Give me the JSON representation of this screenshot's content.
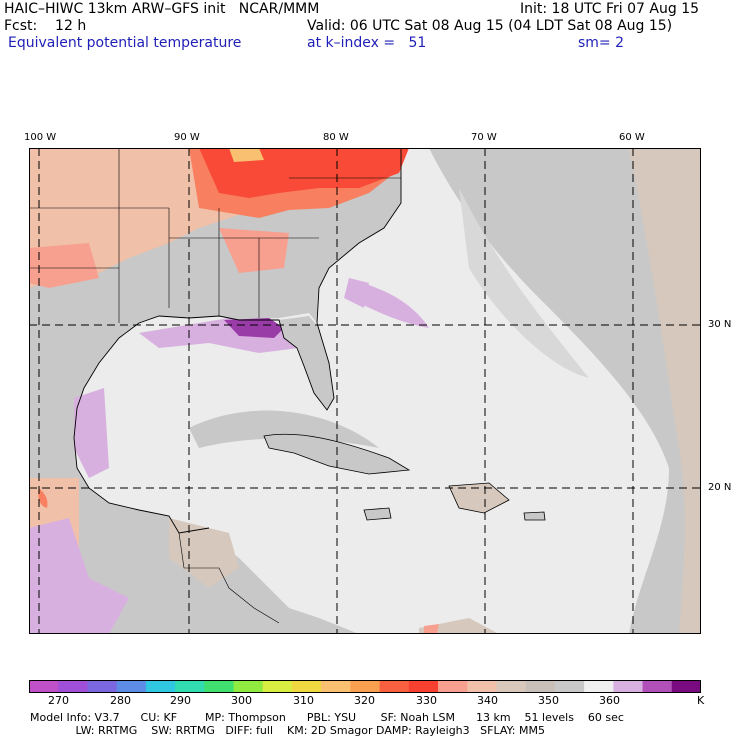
{
  "header": {
    "title": "HAIC–HIWC 13km ARW–GFS init   NCAR/MMM",
    "init": "Init: 18 UTC Fri 07 Aug 15",
    "fcst": "Fcst:    12 h",
    "valid": "Valid: 06 UTC Sat 08 Aug 15 (04 LDT Sat 08 Aug 15)",
    "field": "Equivalent potential temperature",
    "level": "at k–index =   51",
    "smooth": "sm= 2"
  },
  "map": {
    "lon_labels": [
      "100 W",
      "90 W",
      "80 W",
      "70 W",
      "60 W"
    ],
    "lat_labels": [
      "30 N",
      "20 N"
    ]
  },
  "colorbar": {
    "colors": [
      "#c050c8",
      "#a050d8",
      "#7b68e0",
      "#5c8ce6",
      "#30c8e0",
      "#30dcb0",
      "#40e070",
      "#90ea40",
      "#d8ee40",
      "#f0d840",
      "#f8c070",
      "#f8a050",
      "#f86040",
      "#f84030",
      "#f8a090",
      "#f0c0a8",
      "#d8c8bc",
      "#c8c0b8",
      "#c8c8c8",
      "#f0f0f0",
      "#d8b0e0",
      "#b050b8",
      "#7a0a80"
    ],
    "ticks": [
      "270",
      "280",
      "290",
      "300",
      "310",
      "320",
      "330",
      "340",
      "350",
      "360"
    ],
    "unit": "K"
  },
  "footer": {
    "line1": "Model Info: V3.7      CU: KF        MP: Thompson      PBL: YSU       SF: Noah LSM      13 km    51 levels    60 sec",
    "line2": "             LW: RRTMG    SW: RRTMG   DIFF: full    KM: 2D Smagor DAMP: Rayleigh3   SFLAY: MM5"
  },
  "colors": {
    "ocean": "#ececec",
    "gray": "#c8c8c8",
    "tan": "#d6c8bc",
    "peach": "#f0c0a8",
    "salmon": "#f8a090",
    "orange": "#f88060",
    "red": "#f84a36",
    "lilac": "#d8b0e0",
    "purple": "#9a3ca8"
  }
}
